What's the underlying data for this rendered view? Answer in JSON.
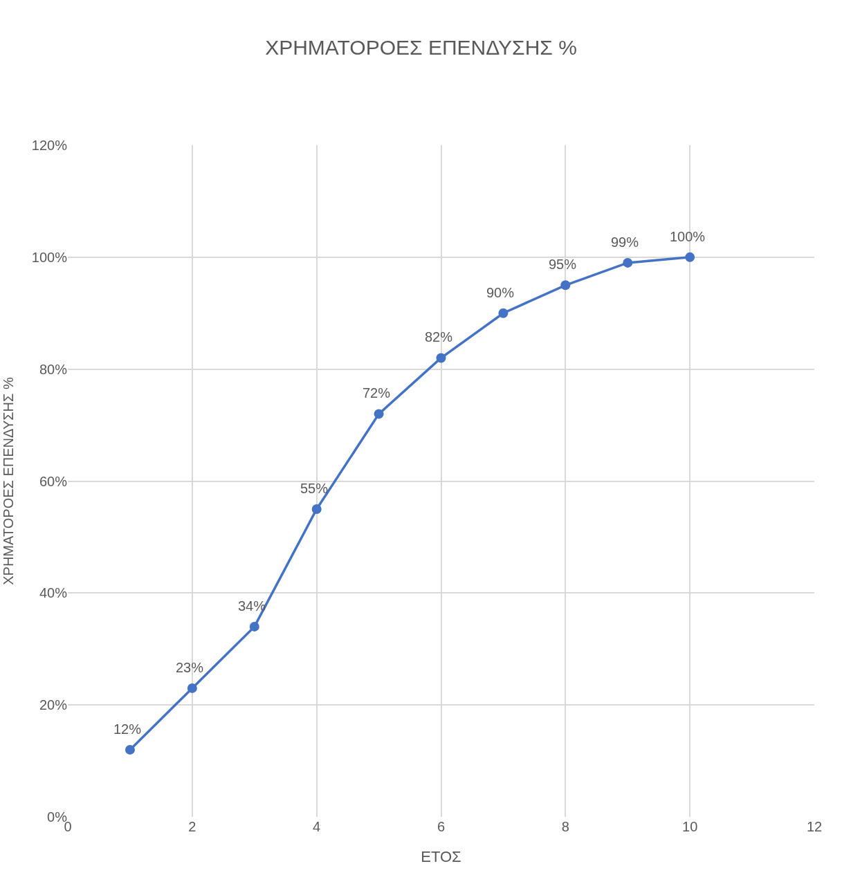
{
  "chart_data": {
    "type": "line",
    "title": "ΧΡΗΜΑΤΟΡΟΕΣ ΕΠΕΝΔΥΣΗΣ %",
    "xlabel": "ΕΤΟΣ",
    "ylabel": "ΧΡΗΜΑΤΟΡΟΕΣ ΕΠΕΝΔΥΣΗΣ %",
    "x": [
      1,
      2,
      3,
      4,
      5,
      6,
      7,
      8,
      9,
      10
    ],
    "series": [
      {
        "color": "#4472c4",
        "values": [
          12,
          23,
          34,
          55,
          72,
          82,
          90,
          95,
          99,
          100
        ],
        "value_labels": [
          "12%",
          "23%",
          "34%",
          "55%",
          "72%",
          "82%",
          "90%",
          "95%",
          "99%",
          "100%"
        ]
      }
    ],
    "xlim": [
      0,
      12
    ],
    "xticks": [
      0,
      2,
      4,
      6,
      8,
      10,
      12
    ],
    "ylim": [
      0,
      120
    ],
    "yticks": [
      {
        "value": 0,
        "label": "0%"
      },
      {
        "value": 20,
        "label": "20%"
      },
      {
        "value": 40,
        "label": "40%"
      },
      {
        "value": 60,
        "label": "60%"
      },
      {
        "value": 80,
        "label": "80%"
      },
      {
        "value": 100,
        "label": "100%"
      },
      {
        "value": 120,
        "label": "120%"
      }
    ],
    "grid": true,
    "marker": "circle",
    "line_style": "solid"
  }
}
